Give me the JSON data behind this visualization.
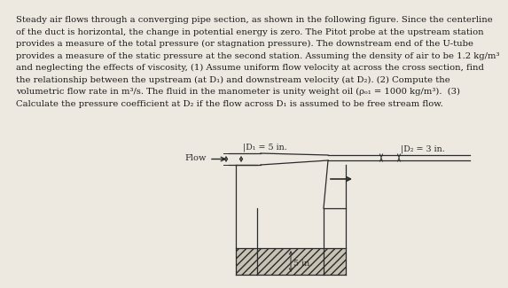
{
  "bg_color": "#ede9e1",
  "text_color": "#1a1a1a",
  "line_color": "#2a2a2a",
  "text_lines": [
    "Steady air flows through a converging pipe section, as shown in the following figure. Since the centerline",
    "of the duct is horizontal, the change in potential energy is zero. The Pitot probe at the upstream station",
    "provides a measure of the total pressure (or stagnation pressure). The downstream end of the U-tube",
    "provides a measure of the static pressure at the second station. Assuming the density of air to be 1.2 kg/m³",
    "and neglecting the effects of viscosity, (1) Assume uniform flow velocity at across the cross section, find",
    "the relationship between the upstream (at D₁) and downstream velocity (at D₂). (2) Compute the",
    "volumetric flow rate in m³/s. The fluid in the manometer is unity weight oil (ρₒ₁ = 1000 kg/m³).  (3)",
    "Calculate the pressure coefficient at D₂ if the flow across D₁ is assumed to be free stream flow."
  ],
  "label_D1": "|D₁ = 5 in.",
  "label_D2": "|D₂ = 3 in.",
  "label_5in": "5 in.",
  "label_flow": "Flow",
  "fontsize_text": 7.2,
  "fontsize_labels": 6.8,
  "hatch_color": "#b0a898"
}
